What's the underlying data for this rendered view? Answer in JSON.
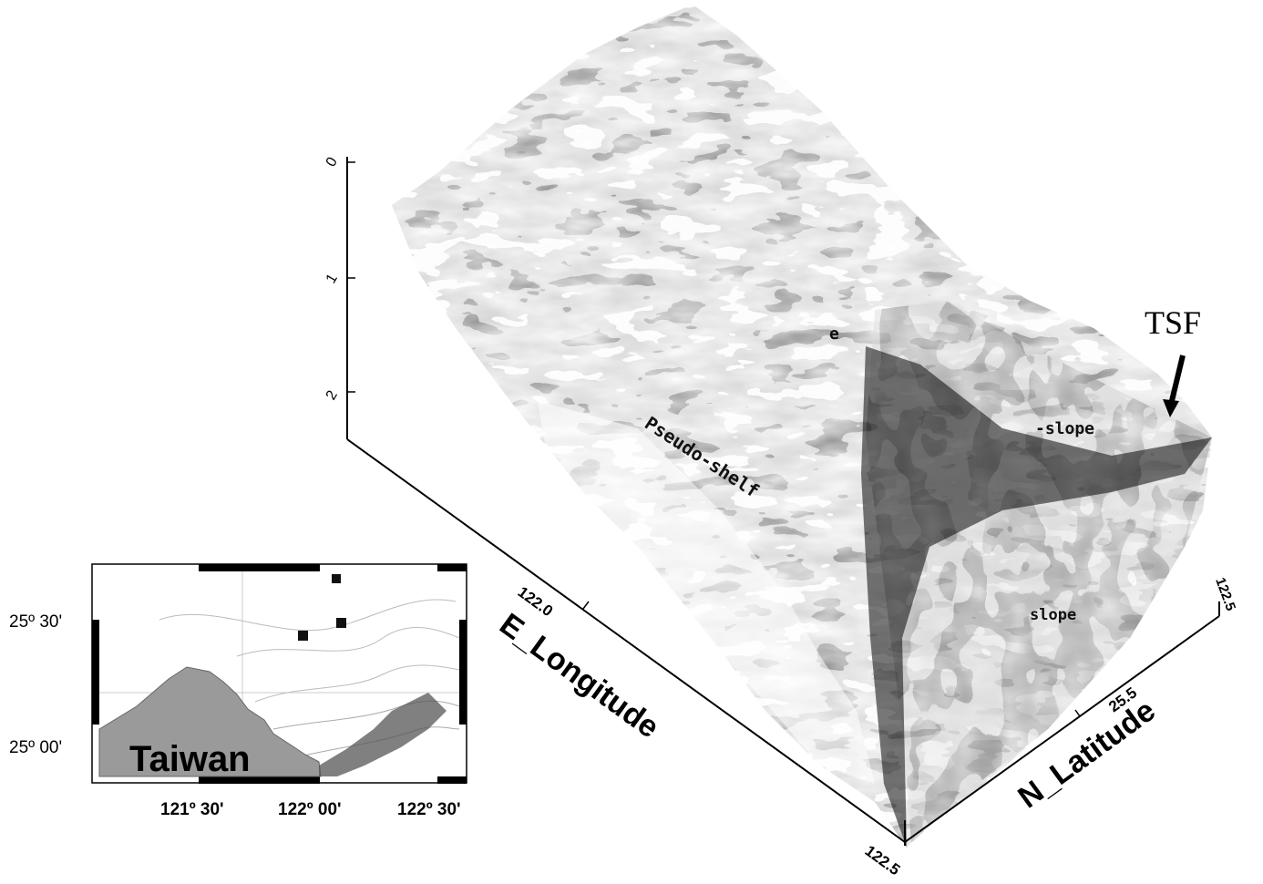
{
  "terrain_3d": {
    "z_ticks": [
      "0",
      "1",
      "2"
    ],
    "x_axis_label": "E_Longitude",
    "x_tick_mid": "122.0",
    "x_tick_end": "122.5",
    "y_axis_label": "N_Latitude",
    "y_tick_mid": "25.5",
    "y_tick_end": "122.5",
    "annotations": {
      "tsf": "TSF",
      "pseudo_shelf": "Pseudo-shelf",
      "slope_upper": "-slope",
      "slope_lower": "slope",
      "shelf_partial": "e"
    }
  },
  "inset_map": {
    "lat_labels": [
      "25º 30'",
      "25º 00'"
    ],
    "lon_labels": [
      "121º 30'",
      "122º 00'",
      "122º 30'"
    ],
    "land_label": "Taiwan",
    "land_color": "#9a9a9a",
    "marker_color": "#111111"
  }
}
